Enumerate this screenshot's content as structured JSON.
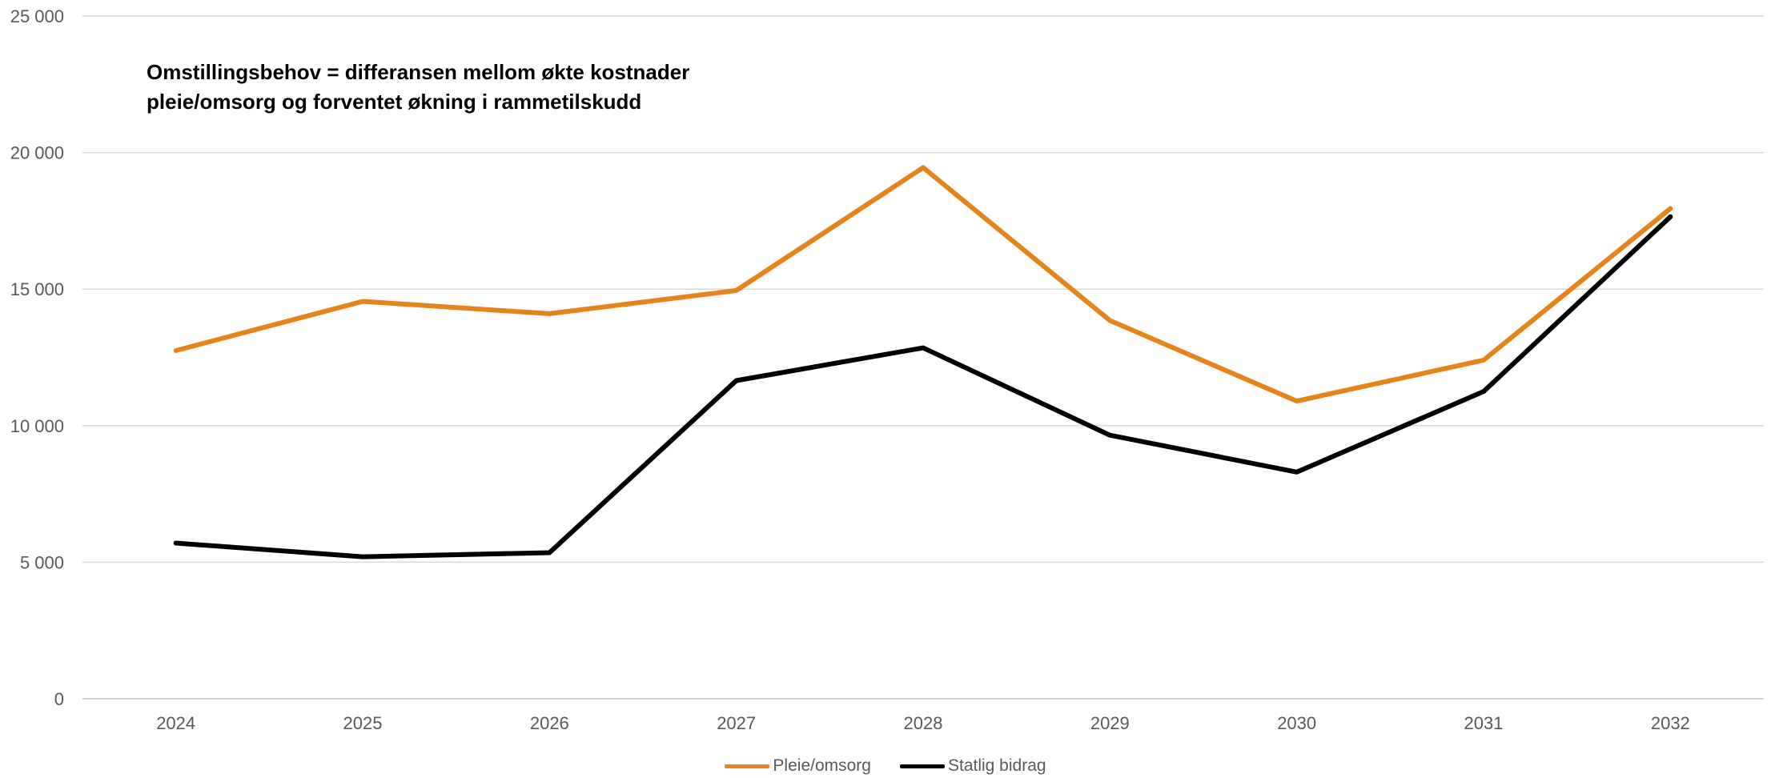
{
  "chart_data": {
    "type": "line",
    "categories": [
      "2024",
      "2025",
      "2026",
      "2027",
      "2028",
      "2029",
      "2030",
      "2031",
      "2032"
    ],
    "series": [
      {
        "name": "Pleie/omsorg",
        "color": "#E6831B",
        "values": [
          12750,
          14550,
          14100,
          14950,
          19450,
          13850,
          10900,
          12400,
          17950
        ]
      },
      {
        "name": "Statlig bidrag",
        "color": "#000000",
        "values": [
          5700,
          5200,
          5350,
          11650,
          12850,
          9650,
          8300,
          11250,
          17650
        ]
      }
    ],
    "ylim": [
      0,
      25000
    ],
    "yticks": [
      0,
      5000,
      10000,
      15000,
      20000,
      25000
    ],
    "ytick_labels": [
      "0",
      "5 000",
      "10 000",
      "15 000",
      "20 000",
      "25 000"
    ],
    "grid": true,
    "legend_position": "bottom",
    "annotation": {
      "line1": "Omstillingsbehov = differansen mellom økte kostnader",
      "line2": "pleie/omsorg og forventet økning i rammetilskudd"
    }
  }
}
